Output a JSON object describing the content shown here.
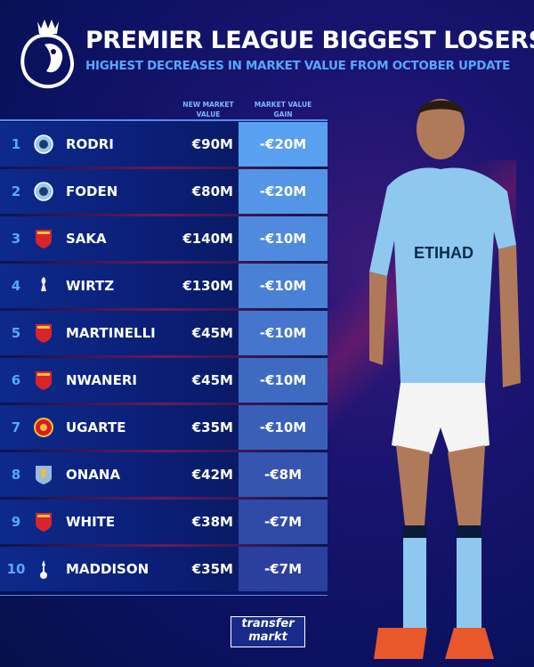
{
  "header": {
    "title": "PREMIER LEAGUE BIGGEST LOSERS",
    "subtitle": "HIGHEST DECREASES IN MARKET VALUE FROM OCTOBER UPDATE",
    "logo_icon": "premier-league-lion-logo"
  },
  "chart_data": {
    "type": "table",
    "title": "PREMIER LEAGUE BIGGEST LOSERS",
    "subtitle": "HIGHEST DECREASES IN MARKET VALUE FROM OCTOBER UPDATE",
    "columns": [
      "NEW MARKET VALUE",
      "MARKET VALUE GAIN"
    ],
    "rows": [
      {
        "rank": "1",
        "name": "RODRI",
        "club_icon": "man-city-badge",
        "value": "€90M",
        "gain": "-€20M"
      },
      {
        "rank": "2",
        "name": "FODEN",
        "club_icon": "man-city-badge",
        "value": "€80M",
        "gain": "-€20M"
      },
      {
        "rank": "3",
        "name": "SAKA",
        "club_icon": "arsenal-badge",
        "value": "€140M",
        "gain": "-€10M"
      },
      {
        "rank": "4",
        "name": "WIRTZ",
        "club_icon": "liverpool-badge",
        "value": "€130M",
        "gain": "-€10M"
      },
      {
        "rank": "5",
        "name": "MARTINELLI",
        "club_icon": "arsenal-badge",
        "value": "€45M",
        "gain": "-€10M"
      },
      {
        "rank": "6",
        "name": "NWANERI",
        "club_icon": "arsenal-badge",
        "value": "€45M",
        "gain": "-€10M"
      },
      {
        "rank": "7",
        "name": "UGARTE",
        "club_icon": "man-united-badge",
        "value": "€35M",
        "gain": "-€10M"
      },
      {
        "rank": "8",
        "name": "ONANA",
        "club_icon": "aston-villa-badge",
        "value": "€42M",
        "gain": "-€8M"
      },
      {
        "rank": "9",
        "name": "WHITE",
        "club_icon": "arsenal-badge",
        "value": "€38M",
        "gain": "-€7M"
      },
      {
        "rank": "10",
        "name": "MADDISON",
        "club_icon": "tottenham-badge",
        "value": "€35M",
        "gain": "-€7M"
      }
    ]
  },
  "colors": {
    "gain_top": "#5aa0f0",
    "gain_bottom": "#2a3f9e",
    "accent": "#5aa6ff"
  },
  "footer": {
    "brand_line1": "transfer",
    "brand_line2": "markt"
  }
}
